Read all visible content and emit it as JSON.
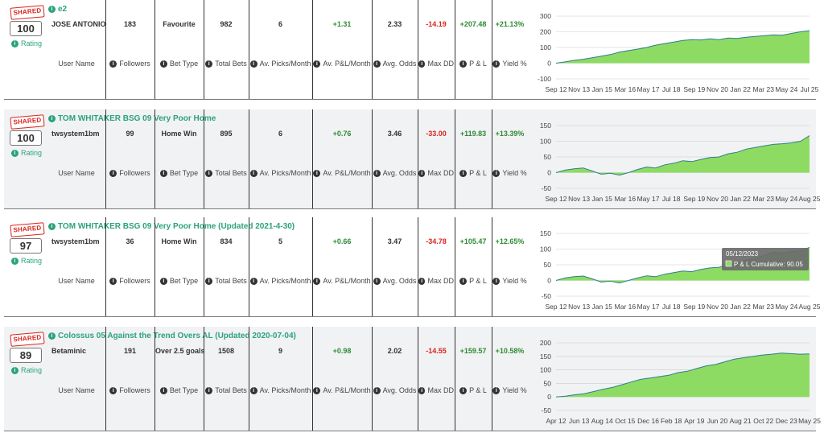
{
  "badge_label": "SHARED",
  "rating_label": "Rating",
  "column_labels": {
    "user": "User Name",
    "followers": "Followers",
    "bet_type": "Bet Type",
    "total_bets": "Total Bets",
    "picks": "Av. Picks/Month",
    "pl_month": "Av. P&L/Month",
    "odds": "Avg. Odds",
    "maxdd": "Max DD",
    "pl": "P & L",
    "yield": "Yield %"
  },
  "colors": {
    "accent": "#2aa37c",
    "positive": "#2e8a34",
    "negative": "#d9241d",
    "chart_fill": "#8edb63",
    "chart_line": "#2e7d8c"
  },
  "systems": [
    {
      "title": "e2",
      "rating": "100",
      "user": "JOSE ANTONIO",
      "followers": "183",
      "bet_type": "Favourite",
      "total_bets": "982",
      "picks": "6",
      "pl_month": "+1.31",
      "odds": "2.33",
      "maxdd": "-14.19",
      "pl": "+207.48",
      "yield": "+21.13%",
      "chart_data": {
        "type": "area",
        "yticks": [
          "300",
          "200",
          "100",
          "0",
          "-100"
        ],
        "ylim": [
          -100,
          300
        ],
        "xticks": [
          "Sep 12",
          "Nov 13",
          "Jan 15",
          "Mar 16",
          "May 17",
          "Jul 18",
          "Sep 19",
          "Nov 20",
          "Jan 22",
          "Mar 23",
          "May 24",
          "Jul 25"
        ],
        "values": [
          0,
          8,
          18,
          25,
          35,
          45,
          55,
          70,
          80,
          90,
          100,
          115,
          125,
          135,
          145,
          150,
          148,
          155,
          150,
          160,
          158,
          165,
          170,
          175,
          180,
          178,
          190,
          200,
          207
        ]
      }
    },
    {
      "title": "TOM WHITAKER BSG 09 Very Poor Home",
      "rating": "100",
      "user": "twsystem1bm",
      "followers": "99",
      "bet_type": "Home Win",
      "total_bets": "895",
      "picks": "6",
      "pl_month": "+0.76",
      "odds": "3.46",
      "maxdd": "-33.00",
      "pl": "+119.83",
      "yield": "+13.39%",
      "chart_data": {
        "type": "area",
        "yticks": [
          "150",
          "100",
          "50",
          "0",
          "-50"
        ],
        "ylim": [
          -50,
          150
        ],
        "xticks": [
          "Sep 12",
          "Nov 13",
          "Jan 15",
          "Mar 16",
          "May 17",
          "Jul 18",
          "Sep 19",
          "Nov 20",
          "Jan 22",
          "Mar 23",
          "May 24",
          "Aug 25"
        ],
        "values": [
          0,
          8,
          12,
          15,
          5,
          -5,
          -2,
          -8,
          0,
          10,
          18,
          15,
          25,
          30,
          38,
          35,
          42,
          48,
          50,
          60,
          65,
          75,
          80,
          85,
          90,
          92,
          95,
          100,
          118
        ]
      }
    },
    {
      "title": "TOM WHITAKER BSG 09 Very Poor Home (Updated 2021-4-30)",
      "rating": "97",
      "user": "twsystem1bm",
      "followers": "36",
      "bet_type": "Home Win",
      "total_bets": "834",
      "picks": "5",
      "pl_month": "+0.66",
      "odds": "3.47",
      "maxdd": "-34.78",
      "pl": "+105.47",
      "yield": "+12.65%",
      "tooltip_date": "05/12/2023",
      "tooltip_text": "P & L Cumulative: 90.05",
      "chart_data": {
        "type": "area",
        "yticks": [
          "150",
          "100",
          "50",
          "0",
          "-50"
        ],
        "ylim": [
          -50,
          150
        ],
        "xticks": [
          "Sep 12",
          "Nov 13",
          "Jan 15",
          "Mar 16",
          "May 17",
          "Jul 18",
          "Sep 19",
          "Nov 20",
          "Jan 22",
          "Mar 23",
          "May 24",
          "Aug 25"
        ],
        "values": [
          0,
          8,
          12,
          14,
          5,
          -5,
          -2,
          -8,
          0,
          8,
          15,
          12,
          20,
          25,
          30,
          28,
          35,
          40,
          42,
          50,
          55,
          65,
          70,
          80,
          90,
          88,
          92,
          95,
          105
        ]
      }
    },
    {
      "title": "Colossus 05 Against the Trend Overs AL (Updated 2020-07-04)",
      "rating": "89",
      "user": "Betaminic",
      "followers": "191",
      "bet_type": "Over 2.5 goals",
      "total_bets": "1508",
      "picks": "9",
      "pl_month": "+0.98",
      "odds": "2.02",
      "maxdd": "-14.55",
      "pl": "+159.57",
      "yield": "+10.58%",
      "chart_data": {
        "type": "area",
        "yticks": [
          "200",
          "150",
          "100",
          "50",
          "0",
          "-50"
        ],
        "ylim": [
          -50,
          200
        ],
        "xticks": [
          "Apr 12",
          "Jun 13",
          "Aug 14",
          "Oct 15",
          "Dec 16",
          "Feb 18",
          "Apr 19",
          "Jun 20",
          "Aug 21",
          "Oct 22",
          "Dec 23",
          "May 25"
        ],
        "values": [
          0,
          3,
          8,
          12,
          20,
          28,
          35,
          45,
          55,
          65,
          70,
          75,
          80,
          90,
          95,
          105,
          115,
          120,
          130,
          140,
          145,
          150,
          155,
          158,
          162,
          160,
          158,
          159
        ]
      }
    }
  ]
}
